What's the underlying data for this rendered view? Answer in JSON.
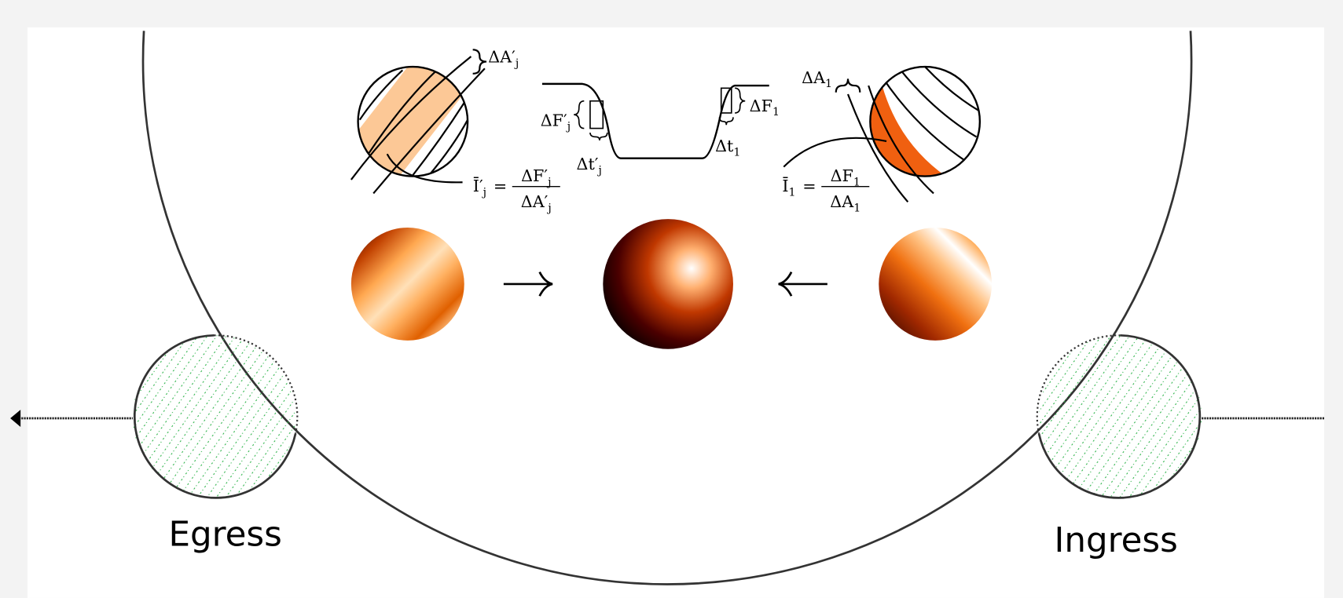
{
  "labels": {
    "egress": "Egress",
    "ingress": "Ingress"
  },
  "math": {
    "area_j": {
      "base": "ΔA′",
      "sub": "j"
    },
    "flux_j": {
      "base": "ΔF′",
      "sub": "j"
    },
    "time_j": {
      "base": "Δt′",
      "sub": "j"
    },
    "flux_1": {
      "base": "ΔF",
      "sub": "1"
    },
    "time_1": {
      "base": "Δt",
      "sub": "1"
    },
    "area_1": {
      "base": "ΔA",
      "sub": "1"
    },
    "intensity_j": {
      "lhs": {
        "base": "Ī′",
        "sub": "j"
      },
      "eq": "=",
      "num": {
        "base": "ΔF′",
        "sub": "j"
      },
      "den": {
        "base": "ΔA′",
        "sub": "j"
      }
    },
    "intensity_1": {
      "lhs": {
        "base": "Ī",
        "sub": "1"
      },
      "eq": "=",
      "num": {
        "base": "ΔF",
        "sub": "1"
      },
      "den": {
        "base": "ΔA",
        "sub": "1"
      }
    }
  }
}
